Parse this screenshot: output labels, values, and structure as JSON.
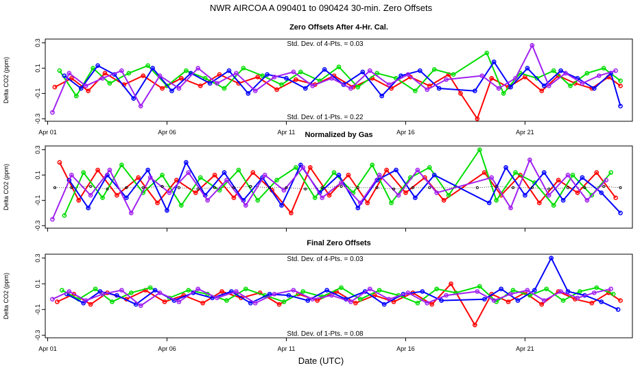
{
  "figure": {
    "title": "NWR   AIRCOA A   090401 to 090424   30-min. Zero Offsets",
    "xlabel": "Date (UTC)"
  },
  "colors": {
    "red": "#ff0000",
    "green": "#00dd00",
    "blue": "#0000ff",
    "purple": "#a020f0",
    "black": "#000000"
  },
  "chart_data": [
    {
      "type": "scatter",
      "title": "Zero Offsets After 4-Hr. Cal.",
      "ylabel": "Delta CO2 (ppm)",
      "ylim": [
        -0.32,
        0.33
      ],
      "xlim": [
        0.9,
        25.5
      ],
      "yticks": [
        -0.3,
        -0.1,
        0.1,
        0.3
      ],
      "ytick_labels": [
        "-0.3",
        "-0.1",
        "0.1",
        "0.3"
      ],
      "xticks": [
        1,
        6,
        11,
        16,
        21
      ],
      "xtick_labels": [
        "Apr 01",
        "Apr 06",
        "Apr 11",
        "Apr 16",
        "Apr 21"
      ],
      "annotations": [
        "Std. Dev. of 4-Pts. = 0.03",
        "Std. Dev. of 1-Pts. = 0.22"
      ],
      "series": [
        {
          "name": "red",
          "x": [
            1.3,
            2.0,
            2.7,
            3.4,
            4.2,
            5.0,
            5.8,
            6.6,
            7.4,
            8.2,
            9.0,
            9.8,
            10.6,
            11.4,
            12.2,
            13.0,
            13.8,
            14.6,
            15.4,
            16.2,
            17.0,
            17.8,
            18.3,
            19.0,
            19.6,
            20.3,
            21.0,
            21.7,
            22.4,
            23.1,
            23.8,
            24.5,
            25.0
          ],
          "y": [
            -0.05,
            0.02,
            -0.08,
            0.06,
            -0.03,
            0.04,
            -0.06,
            0.02,
            -0.04,
            0.05,
            -0.02,
            0.03,
            -0.07,
            0.01,
            -0.03,
            0.04,
            -0.05,
            0.02,
            -0.06,
            0.03,
            -0.04,
            0.05,
            -0.1,
            -0.3,
            0.02,
            -0.05,
            0.03,
            -0.08,
            0.04,
            -0.02,
            -0.06,
            0.03,
            -0.04
          ]
        },
        {
          "name": "green",
          "x": [
            1.5,
            2.2,
            2.9,
            3.6,
            4.4,
            5.2,
            6.0,
            6.8,
            7.6,
            8.4,
            9.2,
            10.0,
            10.8,
            11.6,
            12.4,
            13.2,
            14.0,
            14.8,
            15.6,
            16.4,
            17.2,
            18.0,
            19.4,
            20.1,
            20.8,
            21.5,
            22.2,
            22.9,
            23.6,
            24.3,
            25.0
          ],
          "y": [
            0.08,
            -0.12,
            0.1,
            -0.02,
            0.06,
            0.12,
            -0.04,
            0.08,
            0.02,
            -0.06,
            0.1,
            0.04,
            -0.03,
            0.07,
            0.0,
            0.11,
            -0.05,
            0.06,
            0.02,
            -0.08,
            0.09,
            0.05,
            0.22,
            -0.1,
            0.06,
            0.02,
            0.08,
            -0.04,
            0.06,
            0.1,
            0.0
          ]
        },
        {
          "name": "blue",
          "x": [
            1.7,
            2.4,
            3.1,
            3.8,
            4.6,
            5.4,
            6.2,
            7.0,
            7.8,
            8.6,
            9.4,
            10.2,
            11.0,
            11.8,
            12.6,
            13.4,
            14.2,
            15.0,
            15.8,
            16.6,
            17.4,
            18.9,
            19.7,
            20.4,
            21.1,
            21.8,
            22.5,
            23.2,
            23.9,
            24.6,
            25.0
          ],
          "y": [
            0.04,
            -0.06,
            0.12,
            0.05,
            -0.14,
            0.1,
            -0.08,
            0.06,
            -0.02,
            0.08,
            -0.1,
            0.05,
            0.02,
            -0.06,
            0.09,
            -0.03,
            0.07,
            -0.12,
            0.04,
            0.08,
            -0.06,
            -0.08,
            0.15,
            -0.05,
            0.1,
            -0.04,
            0.08,
            0.02,
            -0.06,
            0.06,
            -0.2
          ]
        },
        {
          "name": "purple",
          "x": [
            1.2,
            1.9,
            2.6,
            3.3,
            4.1,
            4.9,
            5.7,
            6.5,
            7.3,
            8.1,
            8.9,
            9.7,
            10.5,
            11.3,
            12.1,
            12.9,
            13.7,
            14.5,
            15.3,
            16.1,
            16.9,
            17.7,
            19.2,
            19.9,
            20.6,
            21.3,
            22.0,
            22.7,
            23.4,
            24.1,
            24.8
          ],
          "y": [
            -0.25,
            0.06,
            -0.04,
            0.02,
            0.08,
            -0.2,
            0.04,
            -0.06,
            0.1,
            -0.02,
            0.06,
            -0.08,
            0.03,
            0.07,
            -0.04,
            0.02,
            -0.06,
            0.08,
            -0.03,
            0.05,
            -0.07,
            0.01,
            0.04,
            -0.06,
            0.02,
            0.28,
            -0.04,
            0.06,
            -0.02,
            0.04,
            0.08
          ]
        }
      ]
    },
    {
      "type": "scatter",
      "title": "Normalized by Gas",
      "ylabel": "Delta CO2 (ppm)",
      "ylim": [
        -0.32,
        0.33
      ],
      "xlim": [
        0.9,
        25.5
      ],
      "yticks": [
        -0.3,
        -0.1,
        0.1,
        0.3
      ],
      "ytick_labels": [
        "-0.3",
        "-0.1",
        "0.1",
        "0.3"
      ],
      "xticks": [
        1,
        6,
        11,
        16,
        21
      ],
      "xtick_labels": [],
      "annotations": [],
      "series": [
        {
          "name": "red",
          "x": [
            1.5,
            2.3,
            3.1,
            3.9,
            4.8,
            5.6,
            6.4,
            7.2,
            8.0,
            8.8,
            9.6,
            10.4,
            11.2,
            12.0,
            12.8,
            13.6,
            14.4,
            15.2,
            16.0,
            16.8,
            17.6,
            19.3,
            20.0,
            20.8,
            21.6,
            22.4,
            23.2,
            24.0,
            24.8
          ],
          "y": [
            0.2,
            -0.1,
            0.14,
            -0.06,
            0.08,
            -0.12,
            0.06,
            -0.04,
            0.1,
            -0.08,
            0.12,
            -0.02,
            -0.2,
            0.16,
            -0.06,
            0.1,
            -0.12,
            0.14,
            -0.04,
            0.08,
            -0.1,
            0.12,
            -0.06,
            0.1,
            -0.12,
            0.06,
            -0.04,
            0.12,
            -0.08
          ]
        },
        {
          "name": "green",
          "x": [
            1.7,
            2.5,
            3.3,
            4.1,
            5.0,
            5.8,
            6.6,
            7.4,
            8.2,
            9.0,
            9.8,
            10.6,
            11.4,
            12.2,
            13.0,
            13.8,
            14.6,
            15.4,
            16.2,
            17.0,
            17.8,
            19.1,
            19.8,
            20.6,
            21.4,
            22.2,
            23.0,
            23.8,
            24.6
          ],
          "y": [
            -0.22,
            0.12,
            -0.08,
            0.18,
            -0.04,
            0.1,
            -0.14,
            0.08,
            -0.02,
            0.14,
            -0.1,
            0.06,
            0.16,
            -0.08,
            0.12,
            -0.04,
            0.18,
            -0.12,
            0.08,
            0.16,
            -0.06,
            0.3,
            -0.1,
            0.12,
            0.04,
            -0.14,
            0.1,
            -0.06,
            0.12
          ]
        },
        {
          "name": "blue",
          "x": [
            1.9,
            2.7,
            3.5,
            4.3,
            5.2,
            6.0,
            6.8,
            7.6,
            8.4,
            9.2,
            10.0,
            10.8,
            11.6,
            12.4,
            13.2,
            14.0,
            14.8,
            15.6,
            16.4,
            17.2,
            19.5,
            20.2,
            21.0,
            21.8,
            22.6,
            23.4,
            24.2,
            25.0
          ],
          "y": [
            0.06,
            -0.16,
            0.1,
            -0.08,
            0.14,
            -0.18,
            0.2,
            -0.06,
            0.12,
            -0.1,
            0.08,
            -0.14,
            0.18,
            -0.04,
            0.1,
            -0.16,
            0.06,
            0.14,
            -0.08,
            0.1,
            -0.12,
            0.16,
            -0.06,
            0.12,
            -0.1,
            0.08,
            -0.04,
            -0.2
          ]
        },
        {
          "name": "purple",
          "x": [
            1.2,
            2.0,
            2.8,
            3.6,
            4.5,
            5.3,
            6.1,
            6.9,
            7.7,
            8.5,
            9.3,
            10.1,
            10.9,
            11.7,
            12.5,
            13.3,
            14.1,
            14.9,
            15.7,
            16.5,
            17.3,
            19.6,
            20.4,
            21.2,
            22.0,
            22.8,
            23.6,
            24.4
          ],
          "y": [
            -0.25,
            0.1,
            -0.06,
            0.14,
            -0.2,
            0.08,
            -0.04,
            0.12,
            -0.1,
            0.06,
            -0.14,
            0.1,
            -0.02,
            0.16,
            -0.08,
            0.04,
            -0.12,
            0.1,
            -0.06,
            0.14,
            -0.04,
            0.08,
            -0.16,
            0.22,
            -0.06,
            0.1,
            -0.1,
            0.06
          ]
        },
        {
          "name": "black",
          "x": [
            1.3,
            2.0,
            2.8,
            3.5,
            4.3,
            5.0,
            5.8,
            6.5,
            7.3,
            8.0,
            8.8,
            9.5,
            10.3,
            11.0,
            11.8,
            12.5,
            13.3,
            14.0,
            14.8,
            15.5,
            16.3,
            17.0,
            19.0,
            19.8,
            20.5,
            21.3,
            22.0,
            22.8,
            23.5,
            24.3,
            25.0
          ],
          "y": [
            0.0,
            0.0,
            0.01,
            -0.01,
            0.0,
            0.0,
            0.01,
            0.0,
            -0.01,
            0.0,
            0.0,
            0.01,
            0.0,
            0.0,
            -0.01,
            0.0,
            0.01,
            0.0,
            0.0,
            -0.01,
            0.0,
            0.0,
            0.0,
            0.01,
            0.0,
            0.0,
            -0.01,
            0.0,
            0.0,
            0.01,
            0.0
          ]
        }
      ]
    },
    {
      "type": "scatter",
      "title": "Final Zero Offsets",
      "ylabel": "Delta CO2 (ppm)",
      "ylim": [
        -0.32,
        0.33
      ],
      "xlim": [
        0.9,
        25.5
      ],
      "yticks": [
        -0.3,
        -0.1,
        0.1,
        0.3
      ],
      "ytick_labels": [
        "-0.3",
        "-0.1",
        "0.1",
        "0.3"
      ],
      "xticks": [
        1,
        6,
        11,
        16,
        21
      ],
      "xtick_labels": [
        "Apr 01",
        "Apr 06",
        "Apr 11",
        "Apr 16",
        "Apr 21"
      ],
      "annotations": [
        "Std. Dev. of 4-Pts. = 0.03",
        "Std. Dev. of 1-Pts. = 0.08"
      ],
      "series": [
        {
          "name": "red",
          "x": [
            1.4,
            2.1,
            2.8,
            3.5,
            4.3,
            5.1,
            5.9,
            6.7,
            7.5,
            8.3,
            9.1,
            9.9,
            10.7,
            11.5,
            12.3,
            13.1,
            13.9,
            14.7,
            15.5,
            16.3,
            17.1,
            17.9,
            18.9,
            19.6,
            20.3,
            21.0,
            21.7,
            22.4,
            23.1,
            23.8,
            24.5,
            25.0
          ],
          "y": [
            -0.04,
            0.02,
            -0.06,
            0.03,
            -0.02,
            0.05,
            -0.04,
            0.01,
            -0.05,
            0.04,
            -0.01,
            0.03,
            -0.06,
            0.02,
            -0.03,
            0.04,
            -0.05,
            0.01,
            -0.04,
            0.03,
            -0.06,
            0.1,
            -0.22,
            0.02,
            -0.04,
            0.03,
            -0.06,
            0.04,
            -0.02,
            -0.05,
            0.03,
            -0.03
          ]
        },
        {
          "name": "green",
          "x": [
            1.6,
            2.3,
            3.0,
            3.7,
            4.5,
            5.3,
            6.1,
            6.9,
            7.7,
            8.5,
            9.3,
            10.1,
            10.9,
            11.7,
            12.5,
            13.3,
            14.1,
            14.9,
            15.7,
            16.5,
            17.3,
            18.1,
            19.1,
            19.8,
            20.5,
            21.2,
            21.9,
            22.6,
            23.3,
            24.0,
            24.7
          ],
          "y": [
            0.05,
            -0.02,
            0.06,
            -0.04,
            0.03,
            0.07,
            -0.01,
            0.05,
            0.02,
            -0.03,
            0.06,
            0.01,
            -0.04,
            0.04,
            0.0,
            0.07,
            -0.02,
            0.05,
            0.01,
            -0.05,
            0.06,
            0.03,
            0.08,
            -0.04,
            0.05,
            0.01,
            0.06,
            -0.03,
            0.04,
            0.07,
            0.02
          ]
        },
        {
          "name": "blue",
          "x": [
            1.8,
            2.5,
            3.2,
            3.9,
            4.7,
            5.5,
            6.3,
            7.1,
            7.9,
            8.7,
            9.5,
            10.3,
            11.1,
            11.9,
            12.7,
            13.5,
            14.3,
            15.1,
            15.9,
            16.7,
            17.5,
            19.3,
            20.0,
            20.7,
            21.4,
            22.1,
            22.8,
            23.5,
            24.2,
            24.9
          ],
          "y": [
            0.02,
            -0.05,
            0.04,
            0.01,
            -0.06,
            0.05,
            -0.03,
            0.03,
            -0.01,
            0.04,
            -0.05,
            0.02,
            0.01,
            -0.03,
            0.05,
            -0.02,
            0.04,
            -0.06,
            0.02,
            0.04,
            -0.03,
            -0.02,
            0.06,
            -0.03,
            0.05,
            0.3,
            0.04,
            0.01,
            -0.04,
            -0.1
          ]
        },
        {
          "name": "purple",
          "x": [
            1.2,
            1.9,
            2.6,
            3.3,
            4.1,
            4.9,
            5.7,
            6.5,
            7.3,
            8.1,
            8.9,
            9.7,
            10.5,
            11.3,
            12.1,
            12.9,
            13.7,
            14.5,
            15.3,
            16.1,
            16.9,
            17.7,
            19.0,
            19.7,
            20.4,
            21.1,
            21.8,
            22.5,
            23.2,
            23.9,
            24.6
          ],
          "y": [
            -0.02,
            0.04,
            -0.03,
            0.02,
            0.05,
            -0.07,
            0.03,
            -0.04,
            0.06,
            -0.01,
            0.04,
            -0.05,
            0.02,
            0.05,
            -0.02,
            0.01,
            -0.04,
            0.06,
            -0.02,
            0.03,
            -0.05,
            0.01,
            0.04,
            -0.03,
            0.02,
            0.05,
            -0.03,
            0.04,
            -0.01,
            0.03,
            0.06
          ]
        }
      ]
    }
  ]
}
